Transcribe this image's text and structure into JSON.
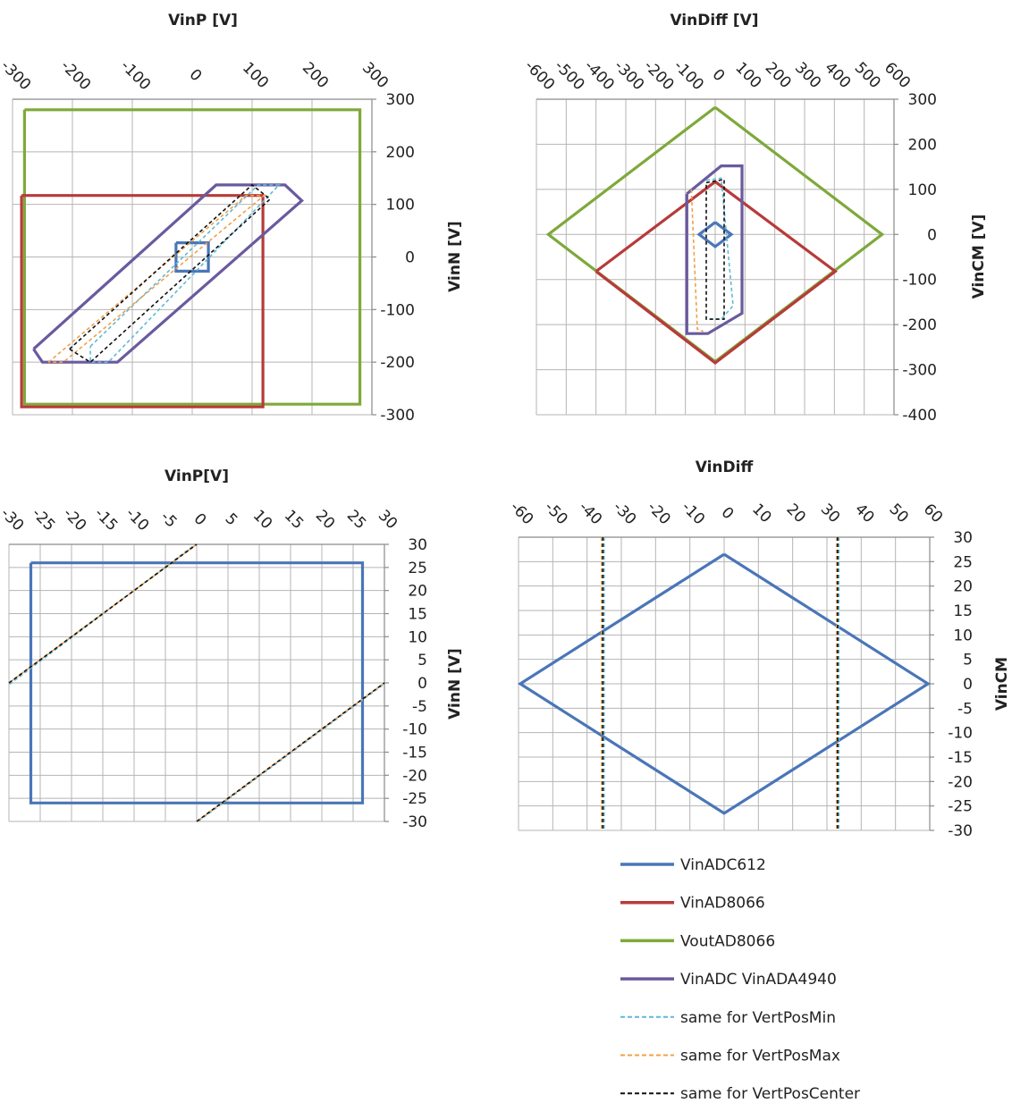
{
  "colors": {
    "VinADC612": "#4a76b8",
    "VinAD8066": "#b83a3a",
    "VoutAD8066": "#7ea93a",
    "VinADC_VinADA4940": "#6a5a9e",
    "VertPosMin": "#5fb9d6",
    "VertPosMax": "#f0a04a",
    "VertPosCenter": "#111111",
    "grid": "#b5b5b5"
  },
  "legend": {
    "placement": "bottom-right",
    "items": [
      {
        "label": "VinADC612",
        "style": "solid",
        "color_key": "VinADC612"
      },
      {
        "label": "VinAD8066",
        "style": "solid",
        "color_key": "VinAD8066"
      },
      {
        "label": "VoutAD8066",
        "style": "solid",
        "color_key": "VoutAD8066"
      },
      {
        "label": "VinADC VinADA4940",
        "style": "solid",
        "color_key": "VinADC_VinADA4940"
      },
      {
        "label": "same for VertPosMin",
        "style": "dashed",
        "color_key": "VertPosMin"
      },
      {
        "label": "same for VertPosMax",
        "style": "dashed",
        "color_key": "VertPosMax"
      },
      {
        "label": "same for VertPosCenter",
        "style": "dashed",
        "color_key": "VertPosCenter"
      }
    ]
  },
  "chart_data": [
    {
      "type": "line",
      "title": "VinP [V]",
      "xlabel": "VinP [V]",
      "ylabel": "VinN [V]",
      "xlim": [
        -300,
        300
      ],
      "ylim": [
        -300,
        300
      ],
      "xticks": [
        -300,
        -200,
        -100,
        0,
        100,
        200,
        300
      ],
      "yticks": [
        -300,
        -200,
        -100,
        0,
        100,
        200,
        300
      ],
      "xtick_labels": [
        "-300",
        "-200",
        "-100",
        "0",
        "100",
        "200",
        "300"
      ],
      "ytick_labels": [
        "-300",
        "-200",
        "-100",
        "0",
        "100",
        "200",
        "300"
      ],
      "grid": true,
      "series": [
        {
          "name": "VoutAD8066",
          "color_key": "VoutAD8066",
          "style": "solid",
          "points": [
            [
              -280,
              280
            ],
            [
              280,
              280
            ],
            [
              280,
              -280
            ],
            [
              -280,
              -280
            ],
            [
              -280,
              280
            ]
          ]
        },
        {
          "name": "VinAD8066",
          "color_key": "VinAD8066",
          "style": "solid",
          "points": [
            [
              -285,
              117
            ],
            [
              118,
              117
            ],
            [
              118,
              -285
            ],
            [
              -285,
              -285
            ],
            [
              -285,
              117
            ]
          ]
        },
        {
          "name": "VinADC VinADA4940",
          "color_key": "VinADC_VinADA4940",
          "style": "solid",
          "points": [
            [
              -265,
              -175
            ],
            [
              40,
              137
            ],
            [
              155,
              137
            ],
            [
              183,
              107
            ],
            [
              -125,
              -200
            ],
            [
              -250,
              -200
            ],
            [
              -265,
              -175
            ]
          ]
        },
        {
          "name": "VinADC612",
          "color_key": "VinADC612",
          "style": "solid",
          "points": [
            [
              -27,
              27
            ],
            [
              27,
              27
            ],
            [
              27,
              -27
            ],
            [
              -27,
              -27
            ],
            [
              -27,
              27
            ]
          ]
        },
        {
          "name": "same for VertPosMin",
          "color_key": "VertPosMin",
          "style": "dashed",
          "points": [
            [
              -170,
              -170
            ],
            [
              110,
              137
            ],
            [
              145,
              137
            ],
            [
              -140,
              -200
            ],
            [
              -170,
              -200
            ],
            [
              -170,
              -170
            ]
          ]
        },
        {
          "name": "same for VertPosMax",
          "color_key": "VertPosMax",
          "style": "dashed",
          "points": [
            [
              -240,
              -200
            ],
            [
              90,
              117
            ],
            [
              120,
              117
            ],
            [
              -215,
              -200
            ],
            [
              -240,
              -200
            ]
          ]
        },
        {
          "name": "same for VertPosCenter",
          "color_key": "VertPosCenter",
          "style": "dashed",
          "points": [
            [
              -205,
              -175
            ],
            [
              100,
              137
            ],
            [
              130,
              110
            ],
            [
              -170,
              -200
            ],
            [
              -205,
              -175
            ]
          ]
        }
      ]
    },
    {
      "type": "line",
      "title": "VinDiff [V]",
      "xlabel": "VinDiff [V]",
      "ylabel": "VinCM [V]",
      "xlim": [
        -600,
        600
      ],
      "ylim": [
        -400,
        300
      ],
      "xticks": [
        -600,
        -500,
        -400,
        -300,
        -200,
        -100,
        0,
        100,
        200,
        300,
        400,
        500,
        600
      ],
      "yticks": [
        -400,
        -300,
        -200,
        -100,
        0,
        100,
        200,
        300
      ],
      "xtick_labels": [
        "-600",
        "-500",
        "-400",
        "-300",
        "-200",
        "-100",
        "0",
        "100",
        "200",
        "300",
        "400",
        "500",
        "600"
      ],
      "ytick_labels": [
        "-400",
        "-300",
        "-200",
        "-100",
        "0",
        "100",
        "200",
        "300"
      ],
      "grid": true,
      "series": [
        {
          "name": "VoutAD8066",
          "color_key": "VoutAD8066",
          "style": "solid",
          "points": [
            [
              0,
              282
            ],
            [
              560,
              0
            ],
            [
              0,
              -282
            ],
            [
              -560,
              0
            ],
            [
              0,
              282
            ]
          ]
        },
        {
          "name": "VinAD8066",
          "color_key": "VinAD8066",
          "style": "solid",
          "points": [
            [
              -400,
              -82
            ],
            [
              0,
              117
            ],
            [
              403,
              -82
            ],
            [
              0,
              -285
            ],
            [
              -400,
              -82
            ]
          ]
        },
        {
          "name": "VinADC VinADA4940",
          "color_key": "VinADC_VinADA4940",
          "style": "solid",
          "points": [
            [
              -95,
              90
            ],
            [
              20,
              152
            ],
            [
              90,
              152
            ],
            [
              90,
              -175
            ],
            [
              -25,
              -220
            ],
            [
              -95,
              -220
            ],
            [
              -95,
              90
            ]
          ]
        },
        {
          "name": "VinADC612",
          "color_key": "VinADC612",
          "style": "solid",
          "points": [
            [
              0,
              27
            ],
            [
              54,
              0
            ],
            [
              0,
              -27
            ],
            [
              -54,
              0
            ],
            [
              0,
              27
            ]
          ]
        },
        {
          "name": "same for VertPosMin",
          "color_key": "VertPosMin",
          "style": "dashed",
          "points": [
            [
              -30,
              120
            ],
            [
              20,
              125
            ],
            [
              60,
              -158
            ],
            [
              20,
              -188
            ],
            [
              -30,
              -188
            ]
          ]
        },
        {
          "name": "same for VertPosMax",
          "color_key": "VertPosMax",
          "style": "dashed",
          "points": [
            [
              -80,
              100
            ],
            [
              -60,
              -210
            ],
            [
              -40,
              -215
            ]
          ]
        },
        {
          "name": "same for VertPosCenter",
          "color_key": "VertPosCenter",
          "style": "dashed",
          "points": [
            [
              -30,
              115
            ],
            [
              30,
              122
            ],
            [
              30,
              -188
            ],
            [
              -30,
              -188
            ],
            [
              -30,
              115
            ]
          ]
        }
      ]
    },
    {
      "type": "line",
      "title": "VinP[V]",
      "xlabel": "VinP[V]",
      "ylabel": "VinN [V]",
      "xlim": [
        -30,
        30
      ],
      "ylim": [
        -30,
        30
      ],
      "xticks": [
        -30,
        -25,
        -20,
        -15,
        -10,
        -5,
        0,
        5,
        10,
        15,
        20,
        25,
        30
      ],
      "yticks": [
        -30,
        -25,
        -20,
        -15,
        -10,
        -5,
        0,
        5,
        10,
        15,
        20,
        25,
        30
      ],
      "xtick_labels": [
        "-30",
        "-25",
        "-20",
        "-15",
        "-10",
        "-5",
        "0",
        "5",
        "10",
        "15",
        "20",
        "25",
        "30"
      ],
      "ytick_labels": [
        "-30",
        "-25",
        "-20",
        "-15",
        "-10",
        "-5",
        "0",
        "5",
        "10",
        "15",
        "20",
        "25",
        "30"
      ],
      "grid": true,
      "series": [
        {
          "name": "VinADC612",
          "color_key": "VinADC612",
          "style": "solid",
          "points": [
            [
              -26.5,
              26
            ],
            [
              26.5,
              26
            ],
            [
              26.5,
              -26
            ],
            [
              -26.5,
              -26
            ],
            [
              -26.5,
              26
            ]
          ]
        },
        {
          "name": "same for VertPosMin",
          "color_key": "VertPosMin",
          "style": "dashed",
          "points": [
            [
              -29.9,
              -0.3
            ],
            [
              -0.3,
              29.9
            ]
          ]
        },
        {
          "name": "same for VertPosMin",
          "color_key": "VertPosMin",
          "style": "dashed",
          "points": [
            [
              0.3,
              -29.9
            ],
            [
              29.9,
              -0.3
            ]
          ]
        },
        {
          "name": "same for VertPosMax",
          "color_key": "VertPosMax",
          "style": "dashed",
          "points": [
            [
              -29.7,
              0.3
            ],
            [
              -0.3,
              29.7
            ]
          ]
        },
        {
          "name": "same for VertPosMax",
          "color_key": "VertPosMax",
          "style": "dashed",
          "points": [
            [
              0.3,
              -29.7
            ],
            [
              29.7,
              -0.3
            ]
          ]
        },
        {
          "name": "same for VertPosCenter",
          "color_key": "VertPosCenter",
          "style": "dashed",
          "points": [
            [
              -30,
              0
            ],
            [
              0,
              30
            ]
          ]
        },
        {
          "name": "same for VertPosCenter",
          "color_key": "VertPosCenter",
          "style": "dashed",
          "points": [
            [
              0,
              -30
            ],
            [
              30,
              0
            ]
          ]
        }
      ]
    },
    {
      "type": "line",
      "title": "VinDiff",
      "xlabel": "VinDiff",
      "ylabel": "VinCM",
      "xlim": [
        -60,
        60
      ],
      "ylim": [
        -30,
        30
      ],
      "xticks": [
        -60,
        -50,
        -40,
        -30,
        -20,
        -10,
        0,
        10,
        20,
        30,
        40,
        50,
        60
      ],
      "yticks": [
        -30,
        -25,
        -20,
        -15,
        -10,
        -5,
        0,
        5,
        10,
        15,
        20,
        25,
        30
      ],
      "xtick_labels": [
        "-60",
        "-50",
        "-40",
        "-30",
        "-20",
        "-10",
        "0",
        "10",
        "20",
        "30",
        "40",
        "50",
        "60"
      ],
      "ytick_labels": [
        "-30",
        "-25",
        "-20",
        "-15",
        "-10",
        "-5",
        "0",
        "5",
        "10",
        "15",
        "20",
        "25",
        "30"
      ],
      "grid": true,
      "series": [
        {
          "name": "VinADC612",
          "color_key": "VinADC612",
          "style": "solid",
          "points": [
            [
              0,
              26.5
            ],
            [
              59.5,
              0
            ],
            [
              0,
              -26.5
            ],
            [
              -59.5,
              0
            ],
            [
              0,
              26.5
            ]
          ]
        },
        {
          "name": "same for VertPosMin",
          "color_key": "VertPosMin",
          "style": "dashed",
          "points": [
            [
              -35,
              30
            ],
            [
              -35,
              -30
            ]
          ]
        },
        {
          "name": "same for VertPosMin",
          "color_key": "VertPosMin",
          "style": "dashed",
          "points": [
            [
              33.5,
              30
            ],
            [
              33.5,
              -30
            ]
          ]
        },
        {
          "name": "same for VertPosMax",
          "color_key": "VertPosMax",
          "style": "dashed",
          "points": [
            [
              -35.8,
              30
            ],
            [
              -35.8,
              -30
            ]
          ]
        },
        {
          "name": "same for VertPosMax",
          "color_key": "VertPosMax",
          "style": "dashed",
          "points": [
            [
              32.8,
              30
            ],
            [
              32.8,
              -30
            ]
          ]
        },
        {
          "name": "same for VertPosCenter",
          "color_key": "VertPosCenter",
          "style": "dashed",
          "points": [
            [
              -35.4,
              30
            ],
            [
              -35.4,
              -30
            ]
          ]
        },
        {
          "name": "same for VertPosCenter",
          "color_key": "VertPosCenter",
          "style": "dashed",
          "points": [
            [
              33.1,
              30
            ],
            [
              33.1,
              -30
            ]
          ]
        }
      ]
    }
  ]
}
